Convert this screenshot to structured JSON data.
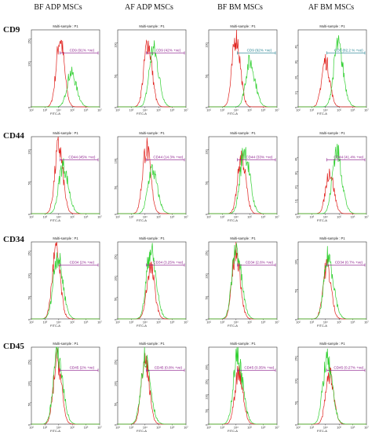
{
  "colors": {
    "gate": "#8b1a8b",
    "gate_teal": "#1f7f8f",
    "control": "#e0201c",
    "marker": "#2fcf2f"
  },
  "columns": [
    "BF ADP MSCs",
    "AF ADP MSCs",
    "BF BM MSCs",
    "AF BM MSCs"
  ],
  "rows": [
    "CD9",
    "CD44",
    "CD34",
    "CD45"
  ],
  "chart_data": {
    "type": "histogram-grid",
    "x_scale": "log",
    "x_ticks": [
      "10²",
      "10³",
      "10⁴",
      "10⁵",
      "10⁶",
      "10⁷"
    ],
    "xlabel": "FITC-A",
    "panel_title": "Multi-sample : P1",
    "panels": [
      {
        "row": "CD9",
        "column": "BF ADP MSCs",
        "gate_label": "CD9 (91% +ve)",
        "yticks": [
          "0",
          "100",
          "150"
        ],
        "ymax": 170,
        "control_peak_log": 4.1,
        "marker_peak_log": 4.9,
        "control_height": 150,
        "marker_height": 75
      },
      {
        "row": "CD9",
        "column": "AF ADP MSCs",
        "gate_label": "CD9 (42% +ve)",
        "yticks": [
          "0",
          "50",
          "100"
        ],
        "ymax": 120,
        "control_peak_log": 4.2,
        "marker_peak_log": 4.6,
        "control_height": 100,
        "marker_height": 90
      },
      {
        "row": "CD9",
        "column": "BF BM MSCs",
        "gate_label": "CD9 (92% +ve)",
        "yticks": [
          "0",
          "50",
          "100"
        ],
        "ymax": 120,
        "control_peak_log": 4.0,
        "marker_peak_log": 5.0,
        "control_height": 110,
        "marker_height": 70
      },
      {
        "row": "CD9",
        "column": "AF BM MSCs",
        "gate_label": "CD9 (82.2 % +ve)",
        "yticks": [
          "0",
          "10",
          "20",
          "30",
          "40"
        ],
        "ymax": 50,
        "control_peak_log": 4.0,
        "marker_peak_log": 4.9,
        "control_height": 30,
        "marker_height": 40
      },
      {
        "row": "CD44",
        "column": "BF ADP MSCs",
        "gate_label": "CD44 (45% +ve)",
        "yticks": [
          "0",
          "50",
          "100"
        ],
        "ymax": 120,
        "control_peak_log": 4.0,
        "marker_peak_log": 4.3,
        "control_height": 105,
        "marker_height": 75
      },
      {
        "row": "CD44",
        "column": "AF ADP MSCs",
        "gate_label": "CD44 (14.3% +ve)",
        "yticks": [
          "0",
          "50",
          "100"
        ],
        "ymax": 140,
        "control_peak_log": 4.1,
        "marker_peak_log": 4.5,
        "control_height": 120,
        "marker_height": 80
      },
      {
        "row": "CD44",
        "column": "BF BM MSCs",
        "gate_label": "CD44 (33% +ve)",
        "yticks": [
          "0",
          "50",
          "100"
        ],
        "ymax": 120,
        "control_peak_log": 4.4,
        "marker_peak_log": 4.6,
        "control_height": 90,
        "marker_height": 100
      },
      {
        "row": "CD44",
        "column": "AF BM MSCs",
        "gate_label": "CD44 (41.4% +ve)",
        "yticks": [
          "0",
          "10",
          "20",
          "30",
          "40"
        ],
        "ymax": 55,
        "control_peak_log": 4.3,
        "marker_peak_log": 4.8,
        "control_height": 30,
        "marker_height": 45
      },
      {
        "row": "CD34",
        "column": "BF ADP MSCs",
        "gate_label": "CD34 (2% +ve)",
        "yticks": [
          "0",
          "50",
          "100",
          "150"
        ],
        "ymax": 170,
        "control_peak_log": 3.8,
        "marker_peak_log": 3.9,
        "control_height": 150,
        "marker_height": 140
      },
      {
        "row": "CD34",
        "column": "AF ADP MSCs",
        "gate_label": "CD34 (3.25% +ve)",
        "yticks": [
          "0",
          "50",
          "100",
          "150"
        ],
        "ymax": 180,
        "control_peak_log": 4.4,
        "marker_peak_log": 4.4,
        "control_height": 120,
        "marker_height": 160
      },
      {
        "row": "CD34",
        "column": "BF BM MSCs",
        "gate_label": "CD34 (2.6% +ve)",
        "yticks": [
          "0",
          "50",
          "100",
          "150"
        ],
        "ymax": 170,
        "control_peak_log": 4.0,
        "marker_peak_log": 4.0,
        "control_height": 150,
        "marker_height": 155
      },
      {
        "row": "CD34",
        "column": "AF BM MSCs",
        "gate_label": "CD34 (0.7% +ve)",
        "yticks": [
          "0",
          "50",
          "100"
        ],
        "ymax": 130,
        "control_peak_log": 4.1,
        "marker_peak_log": 4.2,
        "control_height": 90,
        "marker_height": 105
      },
      {
        "row": "CD45",
        "column": "BF ADP MSCs",
        "gate_label": "CD45 (2% +ve)",
        "yticks": [
          "0",
          "50",
          "100",
          "150"
        ],
        "ymax": 180,
        "control_peak_log": 3.9,
        "marker_peak_log": 3.9,
        "control_height": 150,
        "marker_height": 165
      },
      {
        "row": "CD45",
        "column": "AF ADP MSCs",
        "gate_label": "CD45 (0.8% +ve)",
        "yticks": [
          "0",
          "50",
          "100",
          "150"
        ],
        "ymax": 180,
        "control_peak_log": 4.0,
        "marker_peak_log": 4.0,
        "control_height": 150,
        "marker_height": 160
      },
      {
        "row": "CD45",
        "column": "BF BM MSCs",
        "gate_label": "CD45 (0.35% +ve)",
        "yticks": [
          "0",
          "50",
          "100",
          "150",
          "200"
        ],
        "ymax": 260,
        "control_peak_log": 4.2,
        "marker_peak_log": 4.1,
        "control_height": 180,
        "marker_height": 230
      },
      {
        "row": "CD45",
        "column": "AF BM MSCs",
        "gate_label": "CD45 (0.27% +ve)",
        "yticks": [
          "0",
          "50",
          "100",
          "150"
        ],
        "ymax": 170,
        "control_peak_log": 4.3,
        "marker_peak_log": 4.1,
        "control_height": 110,
        "marker_height": 140
      }
    ]
  }
}
